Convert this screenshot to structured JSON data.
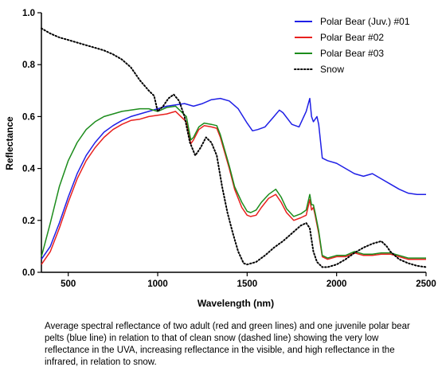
{
  "caption": "Average spectral reflectance of two adult (red and green lines) and one juvenile polar bear pelts (blue line) in relation to that of clean snow (dashed line) showing the very low reflectance in the UVA, increasing reflectance in the visible, and high reflectance in the infrared, in relation to snow.",
  "chart_data": {
    "type": "line",
    "title": "",
    "xlabel": "Wavelength (nm)",
    "ylabel": "Reflectance",
    "xlim": [
      350,
      2500
    ],
    "ylim": [
      0,
      1.0
    ],
    "xticks": [
      "500",
      "1000",
      "1500",
      "2000",
      "2500"
    ],
    "yticks": [
      "0.0",
      "0.2",
      "0.4",
      "0.6",
      "0.8",
      "1.0"
    ],
    "grid": false,
    "legend_position": "top-right",
    "series": [
      {
        "name": "Polar Bear (Juv.) #01",
        "color": "#1f1fe6",
        "dash": "solid",
        "points": [
          [
            350,
            0.05
          ],
          [
            400,
            0.1
          ],
          [
            450,
            0.19
          ],
          [
            500,
            0.29
          ],
          [
            550,
            0.38
          ],
          [
            600,
            0.45
          ],
          [
            650,
            0.5
          ],
          [
            700,
            0.54
          ],
          [
            750,
            0.565
          ],
          [
            800,
            0.585
          ],
          [
            850,
            0.6
          ],
          [
            900,
            0.61
          ],
          [
            950,
            0.62
          ],
          [
            1000,
            0.63
          ],
          [
            1050,
            0.64
          ],
          [
            1100,
            0.645
          ],
          [
            1150,
            0.65
          ],
          [
            1200,
            0.64
          ],
          [
            1250,
            0.65
          ],
          [
            1300,
            0.665
          ],
          [
            1350,
            0.67
          ],
          [
            1400,
            0.66
          ],
          [
            1450,
            0.63
          ],
          [
            1500,
            0.575
          ],
          [
            1530,
            0.545
          ],
          [
            1560,
            0.55
          ],
          [
            1600,
            0.56
          ],
          [
            1650,
            0.6
          ],
          [
            1680,
            0.625
          ],
          [
            1700,
            0.615
          ],
          [
            1750,
            0.57
          ],
          [
            1790,
            0.56
          ],
          [
            1810,
            0.59
          ],
          [
            1830,
            0.62
          ],
          [
            1850,
            0.67
          ],
          [
            1860,
            0.6
          ],
          [
            1870,
            0.58
          ],
          [
            1890,
            0.6
          ],
          [
            1900,
            0.57
          ],
          [
            1920,
            0.44
          ],
          [
            1950,
            0.43
          ],
          [
            2000,
            0.42
          ],
          [
            2050,
            0.4
          ],
          [
            2100,
            0.38
          ],
          [
            2150,
            0.37
          ],
          [
            2200,
            0.38
          ],
          [
            2250,
            0.36
          ],
          [
            2300,
            0.34
          ],
          [
            2350,
            0.32
          ],
          [
            2400,
            0.305
          ],
          [
            2450,
            0.3
          ],
          [
            2500,
            0.3
          ]
        ]
      },
      {
        "name": "Polar Bear #02",
        "color": "#e8201e",
        "dash": "solid",
        "points": [
          [
            350,
            0.03
          ],
          [
            400,
            0.08
          ],
          [
            450,
            0.17
          ],
          [
            500,
            0.27
          ],
          [
            550,
            0.36
          ],
          [
            600,
            0.43
          ],
          [
            650,
            0.48
          ],
          [
            700,
            0.52
          ],
          [
            750,
            0.55
          ],
          [
            800,
            0.57
          ],
          [
            850,
            0.585
          ],
          [
            900,
            0.59
          ],
          [
            950,
            0.6
          ],
          [
            1000,
            0.605
          ],
          [
            1050,
            0.61
          ],
          [
            1100,
            0.62
          ],
          [
            1130,
            0.6
          ],
          [
            1160,
            0.58
          ],
          [
            1185,
            0.495
          ],
          [
            1200,
            0.51
          ],
          [
            1230,
            0.55
          ],
          [
            1260,
            0.565
          ],
          [
            1300,
            0.56
          ],
          [
            1330,
            0.555
          ],
          [
            1350,
            0.52
          ],
          [
            1400,
            0.4
          ],
          [
            1430,
            0.32
          ],
          [
            1470,
            0.25
          ],
          [
            1500,
            0.22
          ],
          [
            1520,
            0.215
          ],
          [
            1550,
            0.22
          ],
          [
            1580,
            0.25
          ],
          [
            1620,
            0.285
          ],
          [
            1660,
            0.3
          ],
          [
            1690,
            0.27
          ],
          [
            1720,
            0.23
          ],
          [
            1760,
            0.2
          ],
          [
            1800,
            0.21
          ],
          [
            1830,
            0.22
          ],
          [
            1850,
            0.28
          ],
          [
            1860,
            0.24
          ],
          [
            1870,
            0.25
          ],
          [
            1880,
            0.22
          ],
          [
            1900,
            0.15
          ],
          [
            1920,
            0.06
          ],
          [
            1950,
            0.05
          ],
          [
            2000,
            0.06
          ],
          [
            2050,
            0.06
          ],
          [
            2100,
            0.075
          ],
          [
            2150,
            0.065
          ],
          [
            2200,
            0.065
          ],
          [
            2250,
            0.07
          ],
          [
            2300,
            0.07
          ],
          [
            2350,
            0.06
          ],
          [
            2400,
            0.05
          ],
          [
            2450,
            0.05
          ],
          [
            2500,
            0.05
          ]
        ]
      },
      {
        "name": "Polar Bear #03",
        "color": "#1c8c1c",
        "dash": "solid",
        "points": [
          [
            350,
            0.06
          ],
          [
            400,
            0.19
          ],
          [
            450,
            0.33
          ],
          [
            500,
            0.43
          ],
          [
            550,
            0.5
          ],
          [
            600,
            0.55
          ],
          [
            650,
            0.58
          ],
          [
            700,
            0.6
          ],
          [
            750,
            0.61
          ],
          [
            800,
            0.62
          ],
          [
            850,
            0.625
          ],
          [
            900,
            0.63
          ],
          [
            950,
            0.63
          ],
          [
            1000,
            0.62
          ],
          [
            1050,
            0.635
          ],
          [
            1100,
            0.64
          ],
          [
            1130,
            0.62
          ],
          [
            1160,
            0.6
          ],
          [
            1185,
            0.51
          ],
          [
            1200,
            0.52
          ],
          [
            1230,
            0.56
          ],
          [
            1260,
            0.575
          ],
          [
            1300,
            0.57
          ],
          [
            1330,
            0.565
          ],
          [
            1350,
            0.53
          ],
          [
            1400,
            0.41
          ],
          [
            1430,
            0.33
          ],
          [
            1470,
            0.27
          ],
          [
            1500,
            0.235
          ],
          [
            1520,
            0.23
          ],
          [
            1550,
            0.24
          ],
          [
            1580,
            0.27
          ],
          [
            1620,
            0.3
          ],
          [
            1660,
            0.32
          ],
          [
            1690,
            0.29
          ],
          [
            1720,
            0.245
          ],
          [
            1760,
            0.215
          ],
          [
            1800,
            0.225
          ],
          [
            1830,
            0.24
          ],
          [
            1850,
            0.3
          ],
          [
            1860,
            0.26
          ],
          [
            1870,
            0.26
          ],
          [
            1880,
            0.23
          ],
          [
            1900,
            0.16
          ],
          [
            1920,
            0.065
          ],
          [
            1950,
            0.055
          ],
          [
            2000,
            0.065
          ],
          [
            2050,
            0.065
          ],
          [
            2100,
            0.08
          ],
          [
            2150,
            0.07
          ],
          [
            2200,
            0.07
          ],
          [
            2250,
            0.075
          ],
          [
            2300,
            0.075
          ],
          [
            2350,
            0.065
          ],
          [
            2400,
            0.055
          ],
          [
            2450,
            0.055
          ],
          [
            2500,
            0.055
          ]
        ]
      },
      {
        "name": "Snow",
        "color": "#000000",
        "dash": "dotted",
        "points": [
          [
            350,
            0.94
          ],
          [
            400,
            0.92
          ],
          [
            450,
            0.905
          ],
          [
            500,
            0.895
          ],
          [
            550,
            0.885
          ],
          [
            600,
            0.875
          ],
          [
            650,
            0.865
          ],
          [
            700,
            0.855
          ],
          [
            750,
            0.84
          ],
          [
            800,
            0.82
          ],
          [
            850,
            0.79
          ],
          [
            900,
            0.74
          ],
          [
            950,
            0.7
          ],
          [
            980,
            0.68
          ],
          [
            1000,
            0.62
          ],
          [
            1030,
            0.64
          ],
          [
            1060,
            0.67
          ],
          [
            1090,
            0.685
          ],
          [
            1120,
            0.66
          ],
          [
            1150,
            0.6
          ],
          [
            1180,
            0.5
          ],
          [
            1210,
            0.45
          ],
          [
            1240,
            0.48
          ],
          [
            1270,
            0.52
          ],
          [
            1300,
            0.5
          ],
          [
            1330,
            0.45
          ],
          [
            1360,
            0.33
          ],
          [
            1390,
            0.23
          ],
          [
            1420,
            0.15
          ],
          [
            1450,
            0.08
          ],
          [
            1480,
            0.035
          ],
          [
            1500,
            0.03
          ],
          [
            1550,
            0.04
          ],
          [
            1600,
            0.065
          ],
          [
            1650,
            0.095
          ],
          [
            1700,
            0.12
          ],
          [
            1750,
            0.15
          ],
          [
            1800,
            0.18
          ],
          [
            1830,
            0.19
          ],
          [
            1850,
            0.17
          ],
          [
            1870,
            0.08
          ],
          [
            1890,
            0.04
          ],
          [
            1920,
            0.02
          ],
          [
            1950,
            0.02
          ],
          [
            2000,
            0.03
          ],
          [
            2050,
            0.05
          ],
          [
            2100,
            0.075
          ],
          [
            2150,
            0.095
          ],
          [
            2200,
            0.11
          ],
          [
            2250,
            0.12
          ],
          [
            2280,
            0.1
          ],
          [
            2300,
            0.08
          ],
          [
            2350,
            0.05
          ],
          [
            2400,
            0.035
          ],
          [
            2450,
            0.025
          ],
          [
            2500,
            0.02
          ]
        ]
      }
    ]
  }
}
